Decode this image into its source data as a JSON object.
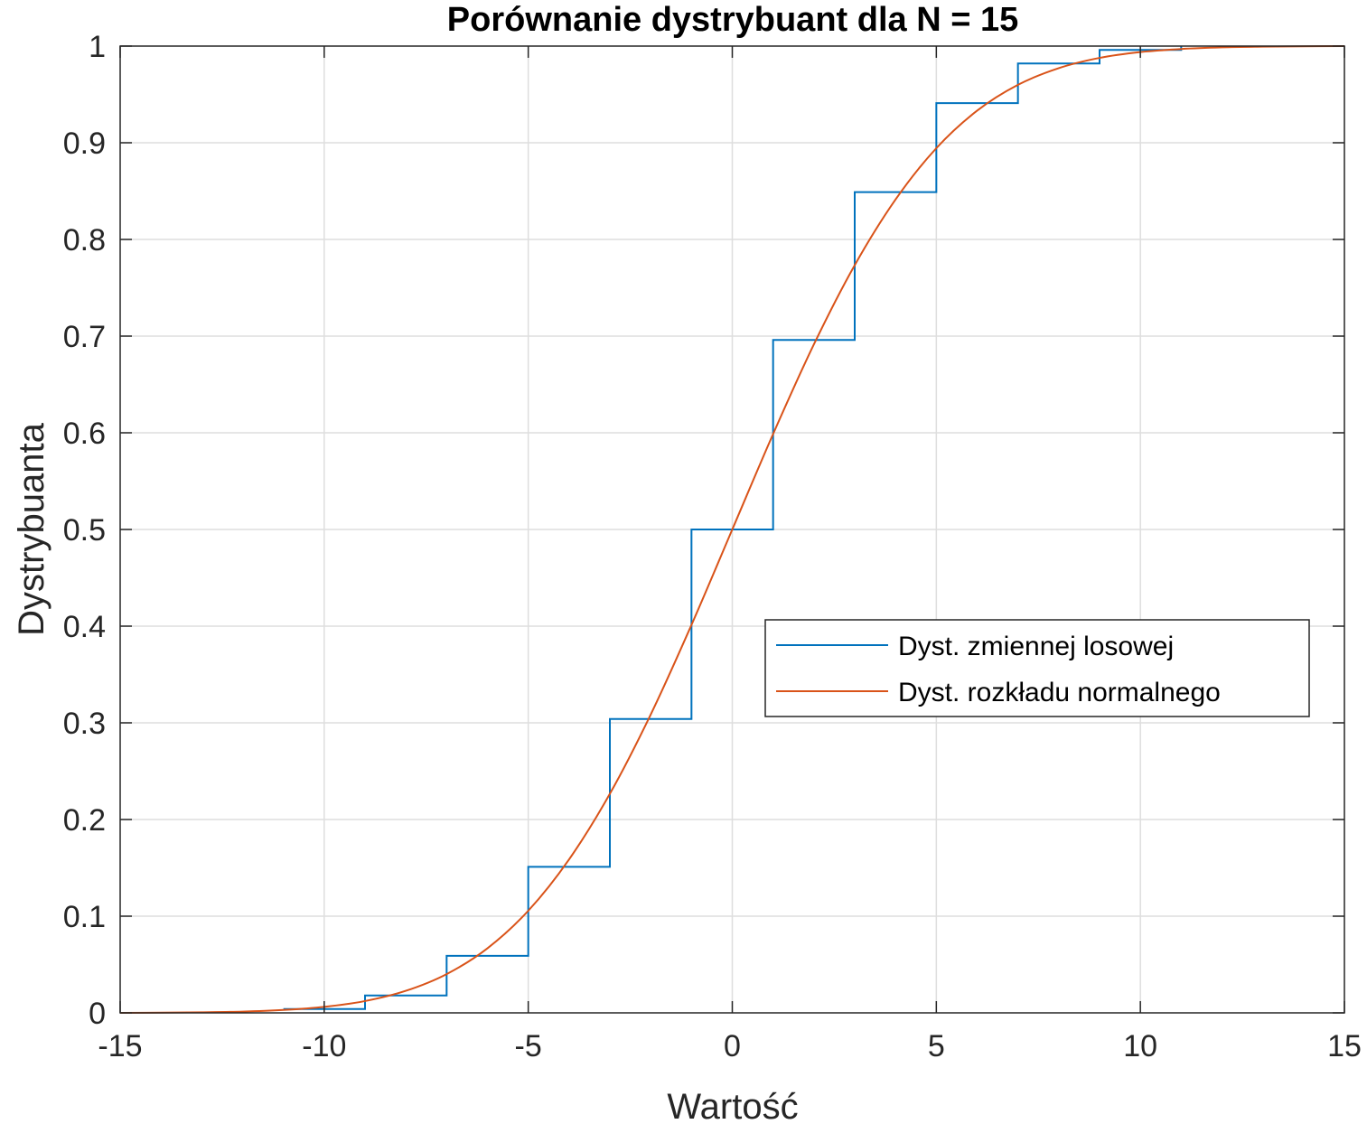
{
  "chart_data": {
    "type": "line",
    "title": "Porównanie dystrybuant dla N = 15",
    "xlabel": "Wartość",
    "ylabel": "Dystrybuanta",
    "xlim": [
      -15,
      15
    ],
    "ylim": [
      0,
      1
    ],
    "xticks": [
      -15,
      -10,
      -5,
      0,
      5,
      10,
      15
    ],
    "xtick_labels": [
      "-15",
      "-10",
      "-5",
      "0",
      "5",
      "10",
      "15"
    ],
    "yticks": [
      0,
      0.1,
      0.2,
      0.3,
      0.4,
      0.5,
      0.6,
      0.7,
      0.8,
      0.9,
      1
    ],
    "ytick_labels": [
      "0",
      "0.1",
      "0.2",
      "0.3",
      "0.4",
      "0.5",
      "0.6",
      "0.7",
      "0.8",
      "0.9",
      "1"
    ],
    "grid": true,
    "legend_position": "center-right",
    "series": [
      {
        "name": "Dyst. zmiennej losowej",
        "kind": "stairs",
        "color": "#0072BD",
        "x": [
          -11,
          -9,
          -7,
          -5,
          -3,
          -1,
          1,
          3,
          5,
          7,
          9,
          11
        ],
        "y": [
          0.004,
          0.018,
          0.059,
          0.151,
          0.304,
          0.5,
          0.696,
          0.849,
          0.941,
          0.982,
          0.996,
          1.0
        ]
      },
      {
        "name": "Dyst. rozkładu normalnego",
        "kind": "line",
        "color": "#D95319",
        "x": [
          -15,
          -14,
          -13,
          -12,
          -11,
          -10,
          -9,
          -8,
          -7,
          -6,
          -5,
          -4,
          -3,
          -2,
          -1,
          0,
          1,
          2,
          3,
          4,
          5,
          6,
          7,
          8,
          9,
          10,
          11,
          12,
          13,
          14,
          15
        ],
        "y": [
          0.0,
          0.0002,
          0.0006,
          0.0013,
          0.003,
          0.0062,
          0.0122,
          0.0228,
          0.0401,
          0.0668,
          0.1056,
          0.1587,
          0.2266,
          0.3085,
          0.4013,
          0.5,
          0.5987,
          0.6915,
          0.7734,
          0.8413,
          0.8944,
          0.9332,
          0.9599,
          0.9772,
          0.9878,
          0.9938,
          0.997,
          0.9987,
          0.9994,
          0.9998,
          1.0
        ]
      }
    ]
  }
}
